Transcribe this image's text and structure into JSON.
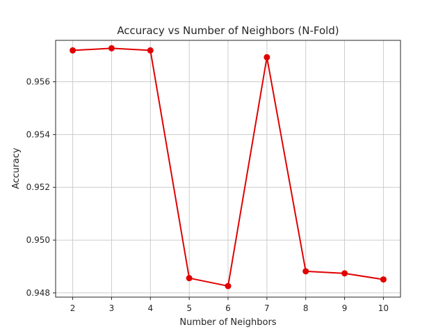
{
  "chart_data": {
    "type": "line",
    "title": "Accuracy vs Number of Neighbors (N-Fold)",
    "xlabel": "Number of Neighbors",
    "ylabel": "Accuracy",
    "x": [
      2,
      3,
      4,
      5,
      6,
      7,
      8,
      9,
      10
    ],
    "xticks": [
      "2",
      "3",
      "4",
      "5",
      "6",
      "7",
      "8",
      "9",
      "10"
    ],
    "yticks": [
      "0.948",
      "0.950",
      "0.952",
      "0.954",
      "0.956"
    ],
    "ytick_values": [
      0.948,
      0.95,
      0.952,
      0.954,
      0.956
    ],
    "xlim": [
      1.56,
      10.44
    ],
    "ylim": [
      0.94784,
      0.95757
    ],
    "grid": true,
    "series": [
      {
        "values": [
          0.95719,
          0.95727,
          0.95719,
          0.94856,
          0.94826,
          0.95693,
          0.94882,
          0.94874,
          0.94851
        ],
        "color": "#e00000",
        "marker": "circle"
      }
    ]
  }
}
